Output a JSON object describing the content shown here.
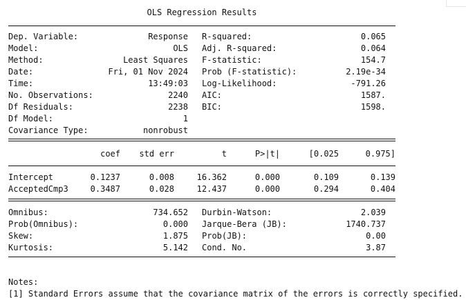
{
  "title": "OLS Regression Results",
  "summary": [
    {
      "l": "Dep. Variable:",
      "lv": "Response",
      "r": "R-squared:",
      "rv": "0.065"
    },
    {
      "l": "Model:",
      "lv": "OLS",
      "r": "Adj. R-squared:",
      "rv": "0.064"
    },
    {
      "l": "Method:",
      "lv": "Least Squares",
      "r": "F-statistic:",
      "rv": "154.7"
    },
    {
      "l": "Date:",
      "lv": "Fri, 01 Nov 2024",
      "r": "Prob (F-statistic):",
      "rv": "2.19e-34"
    },
    {
      "l": "Time:",
      "lv": "13:49:03",
      "r": "Log-Likelihood:",
      "rv": "-791.26"
    },
    {
      "l": "No. Observations:",
      "lv": "2240",
      "r": "AIC:",
      "rv": "1587."
    },
    {
      "l": "Df Residuals:",
      "lv": "2238",
      "r": "BIC:",
      "rv": "1598."
    },
    {
      "l": "Df Model:",
      "lv": "1",
      "r": "",
      "rv": ""
    },
    {
      "l": "Covariance Type:",
      "lv": "nonrobust",
      "r": "",
      "rv": ""
    }
  ],
  "coef_headers": [
    "coef",
    "std err",
    "t",
    "P>|t|",
    "[0.025",
    "0.975]"
  ],
  "coef_rows": [
    {
      "name": "Intercept",
      "vals": [
        "0.1237",
        "0.008",
        "16.362",
        "0.000",
        "0.109",
        "0.139"
      ]
    },
    {
      "name": "AcceptedCmp3",
      "vals": [
        "0.3487",
        "0.028",
        "12.437",
        "0.000",
        "0.294",
        "0.404"
      ]
    }
  ],
  "diagnostics": [
    {
      "l": "Omnibus:",
      "lv": "734.652",
      "r": "Durbin-Watson:",
      "rv": "2.039"
    },
    {
      "l": "Prob(Omnibus):",
      "lv": "0.000",
      "r": "Jarque-Bera (JB):",
      "rv": "1740.737"
    },
    {
      "l": "Skew:",
      "lv": "1.875",
      "r": "Prob(JB):",
      "rv": "0.00"
    },
    {
      "l": "Kurtosis:",
      "lv": "5.142",
      "r": "Cond. No.",
      "rv": "3.87"
    }
  ],
  "notes_title": "Notes:",
  "notes_line": "[1] Standard Errors assume that the covariance matrix of the errors is correctly specified."
}
